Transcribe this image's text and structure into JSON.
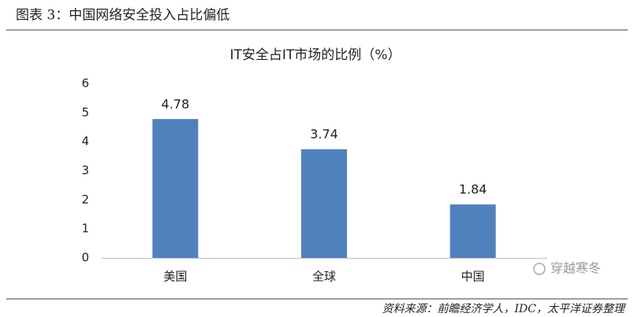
{
  "header": {
    "title": "图表 3：中国网络安全投入占比偏低"
  },
  "chart_data": {
    "type": "bar",
    "title": "IT安全占IT市场的比例（%）",
    "categories": [
      "美国",
      "全球",
      "中国"
    ],
    "values": [
      4.78,
      3.74,
      1.84
    ],
    "color": "#4f81bd",
    "ylim": [
      0,
      6
    ],
    "yticks": [
      0,
      1,
      2,
      3,
      4,
      5,
      6
    ],
    "grid": false,
    "data_labels": true
  },
  "source": "资料来源：前瞻经济学人，IDC，太平洋证券整理",
  "watermark": "穿越寒冬"
}
